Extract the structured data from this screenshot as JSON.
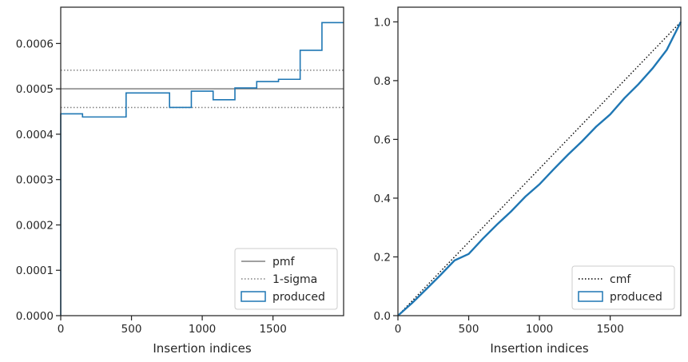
{
  "chart_data": [
    {
      "type": "line",
      "title": "",
      "xlabel": "Insertion indices",
      "ylabel": "",
      "xlim": [
        0,
        1999
      ],
      "ylim": [
        0,
        0.00068
      ],
      "xticks": [
        0,
        500,
        1000,
        1500
      ],
      "xtick_labels": [
        "0",
        "500",
        "1000",
        "1500"
      ],
      "yticks": [
        0,
        0.0001,
        0.0002,
        0.0003,
        0.0004,
        0.0005,
        0.0006
      ],
      "ytick_labels": [
        "0.0000",
        "0.0001",
        "0.0002",
        "0.0003",
        "0.0004",
        "0.0005",
        "0.0006"
      ],
      "grid": false,
      "legend_location": "lower-right",
      "reference_lines": [
        {
          "name": "pmf",
          "style": "solid",
          "color": "#808080",
          "y": 0.0005
        },
        {
          "name": "1-sigma",
          "style": "dotted",
          "color": "#808080",
          "y": 0.000541
        },
        {
          "name": "1-sigma",
          "style": "dotted",
          "color": "#808080",
          "y": 0.000459
        }
      ],
      "series": [
        {
          "name": "produced",
          "kind": "step-histogram",
          "color": "#1f77b4",
          "bin_edges": [
            0,
            154,
            462,
            769,
            923,
            1077,
            1231,
            1385,
            1539,
            1692,
            1846,
            1999
          ],
          "values": [
            0.000445,
            0.000438,
            0.000491,
            0.000459,
            0.000495,
            0.000476,
            0.000502,
            0.000516,
            0.000521,
            0.000585,
            0.000646
          ]
        }
      ],
      "legend": [
        {
          "label": "pmf",
          "style": "solid"
        },
        {
          "label": "1-sigma",
          "style": "dotted"
        },
        {
          "label": "produced",
          "style": "patch"
        }
      ]
    },
    {
      "type": "line",
      "title": "",
      "xlabel": "Insertion indices",
      "ylabel": "",
      "xlim": [
        0,
        1999
      ],
      "ylim": [
        0,
        1.05
      ],
      "xticks": [
        0,
        500,
        1000,
        1500
      ],
      "xtick_labels": [
        "0",
        "500",
        "1000",
        "1500"
      ],
      "yticks": [
        0,
        0.2,
        0.4,
        0.6,
        0.8,
        1.0
      ],
      "ytick_labels": [
        "0.0",
        "0.2",
        "0.4",
        "0.6",
        "0.8",
        "1.0"
      ],
      "grid": false,
      "legend_location": "lower-right",
      "series": [
        {
          "name": "cmf",
          "style": "dotted",
          "color": "#000000",
          "x": [
            0,
            1999
          ],
          "y": [
            0,
            1.0
          ]
        },
        {
          "name": "produced",
          "style": "solid",
          "color": "#1f77b4",
          "x": [
            0,
            100,
            200,
            300,
            400,
            500,
            600,
            700,
            800,
            900,
            1000,
            1100,
            1200,
            1300,
            1400,
            1500,
            1600,
            1700,
            1800,
            1900,
            1999
          ],
          "y": [
            0,
            0.043,
            0.09,
            0.138,
            0.188,
            0.21,
            0.262,
            0.31,
            0.355,
            0.405,
            0.447,
            0.498,
            0.547,
            0.593,
            0.643,
            0.685,
            0.74,
            0.788,
            0.842,
            0.905,
            1.0
          ]
        }
      ],
      "legend": [
        {
          "label": "cmf",
          "style": "dotted"
        },
        {
          "label": "produced",
          "style": "patch"
        }
      ]
    }
  ]
}
